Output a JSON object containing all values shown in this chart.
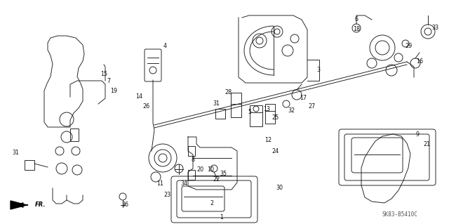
{
  "background_color": "#ffffff",
  "diagram_code": "SK83-B5410C",
  "line_color": "#1a1a1a",
  "label_color": "#111111",
  "lw": 0.65
}
